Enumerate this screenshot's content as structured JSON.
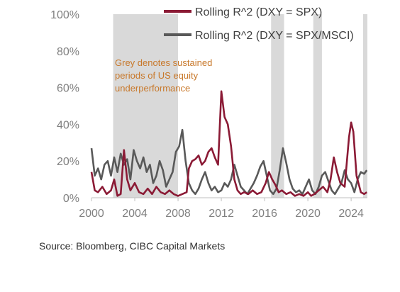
{
  "chart_data": {
    "type": "line",
    "title": "",
    "xlabel": "",
    "ylabel": "",
    "xlim": [
      2000,
      2025.5
    ],
    "ylim": [
      0,
      100
    ],
    "x_ticks": [
      2000,
      2004,
      2008,
      2012,
      2016,
      2020,
      2024
    ],
    "y_ticks": [
      0,
      20,
      40,
      60,
      80,
      100
    ],
    "y_tick_labels": [
      "0%",
      "20%",
      "40%",
      "60%",
      "80%",
      "100%"
    ],
    "grid": false,
    "legend_position": "top-right",
    "shaded_periods": [
      [
        2002.0,
        2008.0
      ],
      [
        2016.6,
        2017.8
      ],
      [
        2020.5,
        2021.3
      ],
      [
        2025.1,
        2025.5
      ]
    ],
    "shaded_color": "#d9d9d9",
    "annotation": [
      "Grey denotes sustained",
      "periods of US equity",
      "underperformance"
    ],
    "annotation_color": "#c8782a",
    "series": [
      {
        "name": "Rolling R^2 (DXY = SPX)",
        "color": "#8b1a35",
        "points": [
          [
            2000.0,
            14
          ],
          [
            2000.3,
            4
          ],
          [
            2000.6,
            3
          ],
          [
            2001.0,
            6
          ],
          [
            2001.4,
            2
          ],
          [
            2001.8,
            4
          ],
          [
            2002.1,
            10
          ],
          [
            2002.4,
            1
          ],
          [
            2002.7,
            2
          ],
          [
            2003.0,
            26
          ],
          [
            2003.3,
            10
          ],
          [
            2003.6,
            4
          ],
          [
            2004.0,
            8
          ],
          [
            2004.4,
            3
          ],
          [
            2004.8,
            2
          ],
          [
            2005.2,
            5
          ],
          [
            2005.6,
            2
          ],
          [
            2006.0,
            6
          ],
          [
            2006.4,
            3
          ],
          [
            2006.8,
            2
          ],
          [
            2007.2,
            4
          ],
          [
            2007.6,
            2
          ],
          [
            2008.0,
            1
          ],
          [
            2008.4,
            2
          ],
          [
            2008.8,
            3
          ],
          [
            2009.0,
            16
          ],
          [
            2009.3,
            20
          ],
          [
            2009.6,
            21
          ],
          [
            2009.9,
            23
          ],
          [
            2010.2,
            18
          ],
          [
            2010.5,
            20
          ],
          [
            2010.8,
            25
          ],
          [
            2011.1,
            27
          ],
          [
            2011.4,
            22
          ],
          [
            2011.7,
            18
          ],
          [
            2012.0,
            58
          ],
          [
            2012.3,
            44
          ],
          [
            2012.6,
            40
          ],
          [
            2012.9,
            28
          ],
          [
            2013.2,
            10
          ],
          [
            2013.5,
            4
          ],
          [
            2013.8,
            2
          ],
          [
            2014.1,
            3
          ],
          [
            2014.5,
            2
          ],
          [
            2014.9,
            4
          ],
          [
            2015.3,
            2
          ],
          [
            2015.7,
            3
          ],
          [
            2016.1,
            8
          ],
          [
            2016.4,
            14
          ],
          [
            2016.7,
            10
          ],
          [
            2017.0,
            7
          ],
          [
            2017.3,
            3
          ],
          [
            2017.6,
            4
          ],
          [
            2018.0,
            2
          ],
          [
            2018.4,
            3
          ],
          [
            2018.8,
            1
          ],
          [
            2019.2,
            2
          ],
          [
            2019.6,
            1
          ],
          [
            2020.0,
            3
          ],
          [
            2020.3,
            1
          ],
          [
            2020.6,
            2
          ],
          [
            2021.0,
            4
          ],
          [
            2021.4,
            6
          ],
          [
            2021.8,
            3
          ],
          [
            2022.1,
            10
          ],
          [
            2022.4,
            22
          ],
          [
            2022.7,
            14
          ],
          [
            2023.0,
            8
          ],
          [
            2023.4,
            6
          ],
          [
            2023.8,
            33
          ],
          [
            2024.0,
            41
          ],
          [
            2024.2,
            36
          ],
          [
            2024.5,
            12
          ],
          [
            2024.9,
            3
          ],
          [
            2025.2,
            2
          ],
          [
            2025.45,
            3
          ]
        ]
      },
      {
        "name": "Rolling R^2 (DXY = SPX/MSCI)",
        "color": "#595959",
        "points": [
          [
            2000.0,
            27
          ],
          [
            2000.3,
            12
          ],
          [
            2000.6,
            16
          ],
          [
            2000.9,
            10
          ],
          [
            2001.2,
            18
          ],
          [
            2001.5,
            20
          ],
          [
            2001.8,
            12
          ],
          [
            2002.1,
            22
          ],
          [
            2002.4,
            14
          ],
          [
            2002.7,
            24
          ],
          [
            2003.0,
            18
          ],
          [
            2003.3,
            21
          ],
          [
            2003.6,
            10
          ],
          [
            2003.9,
            26
          ],
          [
            2004.2,
            20
          ],
          [
            2004.5,
            16
          ],
          [
            2004.8,
            22
          ],
          [
            2005.1,
            14
          ],
          [
            2005.4,
            18
          ],
          [
            2005.7,
            8
          ],
          [
            2006.0,
            12
          ],
          [
            2006.3,
            20
          ],
          [
            2006.6,
            15
          ],
          [
            2006.9,
            6
          ],
          [
            2007.2,
            10
          ],
          [
            2007.5,
            14
          ],
          [
            2007.8,
            25
          ],
          [
            2008.1,
            28
          ],
          [
            2008.4,
            37
          ],
          [
            2008.7,
            20
          ],
          [
            2009.0,
            8
          ],
          [
            2009.3,
            4
          ],
          [
            2009.6,
            2
          ],
          [
            2009.9,
            5
          ],
          [
            2010.2,
            10
          ],
          [
            2010.5,
            14
          ],
          [
            2010.8,
            8
          ],
          [
            2011.1,
            4
          ],
          [
            2011.4,
            6
          ],
          [
            2011.7,
            3
          ],
          [
            2012.0,
            4
          ],
          [
            2012.3,
            8
          ],
          [
            2012.6,
            6
          ],
          [
            2012.9,
            10
          ],
          [
            2013.2,
            18
          ],
          [
            2013.5,
            12
          ],
          [
            2013.8,
            6
          ],
          [
            2014.1,
            4
          ],
          [
            2014.4,
            2
          ],
          [
            2014.7,
            5
          ],
          [
            2015.0,
            8
          ],
          [
            2015.3,
            12
          ],
          [
            2015.6,
            17
          ],
          [
            2015.9,
            20
          ],
          [
            2016.2,
            12
          ],
          [
            2016.5,
            4
          ],
          [
            2016.8,
            2
          ],
          [
            2017.1,
            5
          ],
          [
            2017.4,
            15
          ],
          [
            2017.7,
            27
          ],
          [
            2018.0,
            19
          ],
          [
            2018.3,
            10
          ],
          [
            2018.6,
            5
          ],
          [
            2018.9,
            3
          ],
          [
            2019.2,
            4
          ],
          [
            2019.5,
            2
          ],
          [
            2019.8,
            6
          ],
          [
            2020.1,
            10
          ],
          [
            2020.4,
            4
          ],
          [
            2020.7,
            2
          ],
          [
            2021.0,
            6
          ],
          [
            2021.3,
            12
          ],
          [
            2021.6,
            14
          ],
          [
            2021.9,
            9
          ],
          [
            2022.2,
            4
          ],
          [
            2022.5,
            2
          ],
          [
            2022.8,
            5
          ],
          [
            2023.1,
            8
          ],
          [
            2023.4,
            15
          ],
          [
            2023.7,
            10
          ],
          [
            2024.0,
            8
          ],
          [
            2024.3,
            3
          ],
          [
            2024.6,
            10
          ],
          [
            2024.9,
            14
          ],
          [
            2025.2,
            13
          ],
          [
            2025.45,
            15
          ]
        ]
      }
    ]
  },
  "source": "Source: Bloomberg, CIBC Capital Markets"
}
